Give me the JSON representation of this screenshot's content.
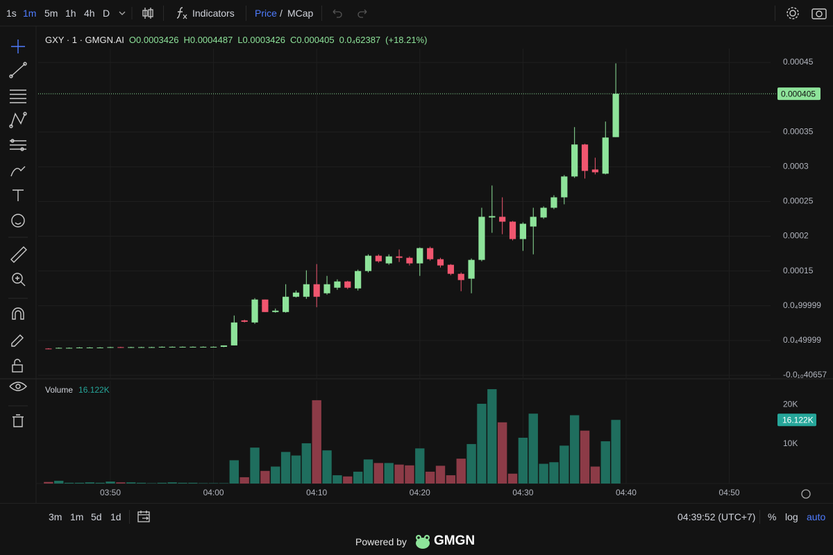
{
  "toolbar": {
    "intervals": [
      "1s",
      "1m",
      "5m",
      "1h",
      "4h",
      "D"
    ],
    "indicators": "Indicators",
    "price": "Price",
    "separator": "/",
    "mcap": "MCap"
  },
  "chart_data": {
    "type": "candlestick",
    "title": "GXY · 1 · GMGN.AI",
    "legend_labels": [
      "O",
      "H",
      "L",
      "C"
    ],
    "change": "0.0₄62387",
    "change_pct": "(+18.21%)",
    "x": [
      "03:44",
      "03:45",
      "03:46",
      "03:47",
      "03:48",
      "03:49",
      "03:50",
      "03:51",
      "03:52",
      "03:53",
      "03:54",
      "03:55",
      "03:56",
      "03:57",
      "03:58",
      "03:59",
      "04:00",
      "04:01",
      "04:02",
      "04:03",
      "04:04",
      "04:05",
      "04:06",
      "04:07",
      "04:08",
      "04:09",
      "04:10",
      "04:11",
      "04:12",
      "04:13",
      "04:14",
      "04:15",
      "04:16",
      "04:17",
      "04:18",
      "04:19",
      "04:20",
      "04:21",
      "04:22",
      "04:23",
      "04:24",
      "04:25",
      "04:26",
      "04:27",
      "04:28",
      "04:29",
      "04:30",
      "04:31",
      "04:32",
      "04:33",
      "04:34",
      "04:35",
      "04:36",
      "04:37",
      "04:38",
      "04:39"
    ],
    "open": [
      3.85e-05,
      3.9e-05,
      3.95e-05,
      3.95e-05,
      4e-05,
      4e-05,
      4e-05,
      4.05e-05,
      4e-05,
      4.05e-05,
      4.05e-05,
      4.05e-05,
      4.1e-05,
      4.1e-05,
      4.1e-05,
      4.1e-05,
      4.1e-05,
      4.1e-05,
      4.3e-05,
      7.9e-05,
      7.6e-05,
      0.000109,
      9.1e-05,
      9.1e-05,
      0.000113,
      0.000113,
      0.000131,
      0.000118,
      0.000126,
      0.000135,
      0.000125,
      0.00015,
      0.000172,
      0.000161,
      0.000171,
      0.000169,
      0.000161,
      0.000183,
      0.000167,
      0.000159,
      0.000146,
      0.000139,
      0.000166,
      0.000227,
      0.000228,
      0.000221,
      0.000196,
      0.000214,
      0.000227,
      0.000241,
      0.000256,
      0.000286,
      0.000332,
      0.000296,
      0.00029,
      0.0003426
    ],
    "high": [
      3.9e-05,
      4e-05,
      4e-05,
      4.05e-05,
      4.05e-05,
      4.05e-05,
      4.1e-05,
      4.1e-05,
      4.1e-05,
      4.1e-05,
      4.1e-05,
      4.15e-05,
      4.15e-05,
      4.15e-05,
      4.15e-05,
      4.15e-05,
      4.15e-05,
      4.3e-05,
      8.6e-05,
      8e-05,
      0.000111,
      0.000109,
      9.6e-05,
      0.000131,
      0.000122,
      0.000151,
      0.00016,
      0.000143,
      0.000138,
      0.000136,
      0.000152,
      0.000174,
      0.000174,
      0.000174,
      0.000181,
      0.000171,
      0.000184,
      0.000185,
      0.000169,
      0.00016,
      0.000148,
      0.000168,
      0.000241,
      0.000273,
      0.000256,
      0.000222,
      0.00022,
      0.000241,
      0.000243,
      0.000259,
      0.000288,
      0.000357,
      0.000333,
      0.000313,
      0.000365,
      0.0004487
    ],
    "low": [
      3.75e-05,
      3.85e-05,
      3.9e-05,
      3.9e-05,
      3.95e-05,
      3.95e-05,
      3.95e-05,
      3.95e-05,
      3.95e-05,
      4e-05,
      4e-05,
      4e-05,
      4.05e-05,
      4.05e-05,
      4.05e-05,
      4.05e-05,
      4.05e-05,
      4.05e-05,
      4.3e-05,
      7.6e-05,
      7.4e-05,
      9.1e-05,
      9e-05,
      9e-05,
      0.000112,
      0.00011,
      9.8e-05,
      0.000116,
      0.000123,
      0.000124,
      0.000122,
      0.000148,
      0.000162,
      0.000159,
      0.000163,
      0.000158,
      0.000143,
      0.000165,
      0.000155,
      0.000144,
      0.000121,
      0.000118,
      0.000164,
      0.000205,
      0.000203,
      0.000194,
      0.000179,
      0.000174,
      0.000225,
      0.000239,
      0.000246,
      0.000284,
      0.000283,
      0.000289,
      0.000289,
      0.0003426
    ],
    "close": [
      3.8e-05,
      3.95e-05,
      3.95e-05,
      4e-05,
      4e-05,
      4e-05,
      4.05e-05,
      4e-05,
      4.05e-05,
      4.05e-05,
      4.05e-05,
      4.1e-05,
      4.1e-05,
      4.1e-05,
      4.1e-05,
      4.1e-05,
      4.1e-05,
      4.3e-05,
      7.6e-05,
      7.7e-05,
      0.000109,
      9.1e-05,
      9.3e-05,
      0.000113,
      0.000119,
      0.000131,
      0.000113,
      0.000131,
      0.000135,
      0.000126,
      0.00015,
      0.000172,
      0.000164,
      0.000171,
      0.000169,
      0.000161,
      0.000183,
      0.000167,
      0.000158,
      0.000146,
      0.000137,
      0.000166,
      0.000228,
      0.000229,
      0.000221,
      0.000196,
      0.000218,
      0.000228,
      0.000241,
      0.000256,
      0.000286,
      0.000332,
      0.000294,
      0.000292,
      0.000342,
      0.000405
    ],
    "up_color": "#8ee39a",
    "down_color": "#f0566f",
    "xlim": [
      "03:43",
      "04:54"
    ],
    "xticks": [
      "03:50",
      "04:00",
      "04:10",
      "04:20",
      "04:30",
      "04:40",
      "04:50"
    ],
    "ylim": [
      -4e-06,
      0.00046
    ],
    "yticks": [
      0.00045,
      0.00035,
      0.0003,
      0.00025,
      0.0002,
      0.00015,
      {
        "value": 9.9999e-05,
        "label": "0.0₄99999"
      },
      {
        "value": 4.9999e-05,
        "label": "0.0₄49999"
      },
      {
        "value": -4.0657e-11,
        "label": "-0.0₁₀40657"
      }
    ],
    "grid": true,
    "volume": {
      "title": "Volume",
      "values": [
        400,
        700,
        200,
        200,
        300,
        200,
        500,
        300,
        300,
        200,
        100,
        200,
        300,
        200,
        200,
        100,
        100,
        100,
        5900,
        1600,
        9100,
        3200,
        4300,
        8000,
        7100,
        10200,
        21100,
        8400,
        2100,
        1800,
        3000,
        6100,
        5200,
        5200,
        4800,
        4600,
        8900,
        3000,
        4500,
        2100,
        6300,
        10000,
        20200,
        23900,
        15500,
        2500,
        11600,
        17700,
        5000,
        5400,
        9600,
        17300,
        13400,
        4300,
        10700,
        16122
      ],
      "value_labels": [
        null,
        null,
        null,
        null,
        null,
        null,
        null,
        null,
        null,
        null,
        null,
        null,
        null,
        null,
        null,
        null,
        null,
        null,
        null,
        null,
        null,
        null,
        null,
        null,
        null,
        null,
        null,
        null,
        null,
        null,
        null,
        null,
        null,
        null,
        null,
        null,
        null,
        null,
        null,
        null,
        null,
        null,
        null,
        null,
        null,
        null,
        null,
        null,
        null,
        null,
        null,
        null,
        null,
        null,
        null,
        "16.122K"
      ],
      "up_color": "#1f6e5e",
      "down_color": "#8c3b47",
      "ylim": [
        0,
        26000
      ],
      "yticks": [
        {
          "value": 10000,
          "label": "10K"
        },
        {
          "value": 20000,
          "label": "20K"
        }
      ]
    }
  },
  "time_ranges": [
    "3m",
    "1m",
    "5d",
    "1d"
  ],
  "clock": "04:39:52 (UTC+7)",
  "scale_options": [
    "%",
    "log",
    "auto"
  ],
  "footer": {
    "powered": "Powered by",
    "brand": "GMGN"
  }
}
